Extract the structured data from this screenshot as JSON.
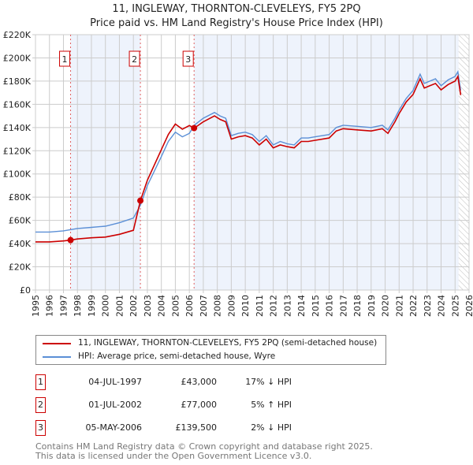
{
  "chart_data": {
    "type": "line",
    "title": "11, INGLEWAY, THORNTON-CLEVELEYS, FY5 2PQ",
    "subtitle": "Price paid vs. HM Land Registry's House Price Index (HPI)",
    "xlim": [
      1995,
      2026
    ],
    "ylim": [
      0,
      220000
    ],
    "x_ticks": [
      "1995",
      "1996",
      "1997",
      "1998",
      "1999",
      "2000",
      "2001",
      "2002",
      "2003",
      "2004",
      "2005",
      "2006",
      "2007",
      "2008",
      "2009",
      "2010",
      "2011",
      "2012",
      "2013",
      "2014",
      "2015",
      "2016",
      "2017",
      "2018",
      "2019",
      "2020",
      "2021",
      "2022",
      "2023",
      "2024",
      "2025",
      "2026"
    ],
    "y_ticks": [
      {
        "v": 0,
        "label": "£0"
      },
      {
        "v": 20000,
        "label": "£20K"
      },
      {
        "v": 40000,
        "label": "£40K"
      },
      {
        "v": 60000,
        "label": "£60K"
      },
      {
        "v": 80000,
        "label": "£80K"
      },
      {
        "v": 100000,
        "label": "£100K"
      },
      {
        "v": 120000,
        "label": "£120K"
      },
      {
        "v": 140000,
        "label": "£140K"
      },
      {
        "v": 160000,
        "label": "£160K"
      },
      {
        "v": 180000,
        "label": "£180K"
      },
      {
        "v": 200000,
        "label": "£200K"
      },
      {
        "v": 220000,
        "label": "£220K"
      }
    ],
    "grid": true,
    "x": [
      1995,
      1996,
      1997,
      1997.5,
      1998,
      1999,
      2000,
      2001,
      2002,
      2002.5,
      2003,
      2004,
      2004.5,
      2005,
      2005.5,
      2006,
      2006.35,
      2007,
      2007.8,
      2008.2,
      2008.6,
      2009,
      2009.5,
      2010,
      2010.5,
      2011,
      2011.5,
      2012,
      2012.5,
      2013,
      2013.5,
      2014,
      2014.5,
      2015,
      2016,
      2016.5,
      2017,
      2018,
      2019,
      2019.8,
      2020.2,
      2020.7,
      2021,
      2021.5,
      2022,
      2022.5,
      2022.8,
      2023.2,
      2023.6,
      2024,
      2024.5,
      2025,
      2025.2,
      2025.4
    ],
    "series": [
      {
        "name": "11, INGLEWAY, THORNTON-CLEVELEYS, FY5 2PQ (semi-detached house)",
        "color": "#cc0000",
        "values": [
          41500,
          41500,
          42300,
          43000,
          44000,
          45000,
          45600,
          48000,
          51500,
          77000,
          94500,
          121000,
          134000,
          143000,
          138600,
          141700,
          139500,
          145000,
          150000,
          147000,
          145000,
          130000,
          132000,
          133000,
          131000,
          125000,
          130000,
          122500,
          125000,
          123500,
          122500,
          128000,
          128000,
          129000,
          131000,
          137000,
          139000,
          138000,
          137000,
          139000,
          135000,
          145000,
          152000,
          162000,
          168500,
          182000,
          174000,
          176000,
          178000,
          172500,
          177000,
          180000,
          184000,
          168000
        ]
      },
      {
        "name": "HPI: Average price, semi-detached house, Wyre",
        "color": "#5b8fd6",
        "values": [
          50000,
          50000,
          51000,
          52000,
          53000,
          54000,
          55000,
          58000,
          62000,
          73000,
          90000,
          115000,
          128000,
          136000,
          132000,
          135000,
          142000,
          148000,
          153000,
          150000,
          148000,
          133000,
          135000,
          136000,
          134000,
          128000,
          133000,
          125000,
          128000,
          126000,
          125000,
          131000,
          131000,
          132000,
          134000,
          140000,
          142000,
          141000,
          140000,
          142000,
          138000,
          148000,
          155000,
          165000,
          172000,
          186000,
          178000,
          180000,
          182000,
          176000,
          181000,
          184000,
          188000,
          172000
        ]
      }
    ],
    "sales": [
      {
        "n": "1",
        "x": 1997.51,
        "date": "04-JUL-1997",
        "price": 43000,
        "price_label": "£43,000",
        "hpi": "17% ↓ HPI"
      },
      {
        "n": "2",
        "x": 2002.5,
        "date": "01-JUL-2002",
        "price": 77000,
        "price_label": "£77,000",
        "hpi": "5% ↑ HPI"
      },
      {
        "n": "3",
        "x": 2006.34,
        "date": "05-MAY-2006",
        "price": 139500,
        "price_label": "£139,500",
        "hpi": "2% ↓ HPI"
      }
    ],
    "data_end": 2025.25,
    "legend_placement": "below"
  },
  "footer": {
    "line1": "Contains HM Land Registry data © Crown copyright and database right 2025.",
    "line2": "This data is licensed under the Open Government Licence v3.0."
  }
}
